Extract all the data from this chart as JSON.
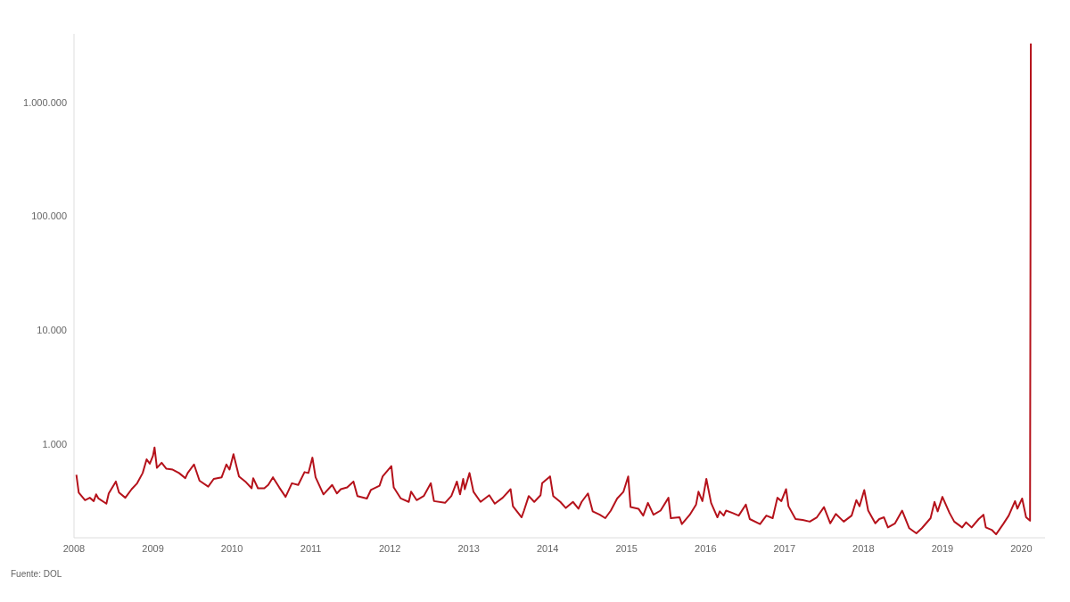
{
  "chart_data": {
    "type": "line",
    "x": [
      2008.03,
      2008.06,
      2008.14,
      2008.2,
      2008.25,
      2008.28,
      2008.31,
      2008.41,
      2008.44,
      2008.53,
      2008.57,
      2008.65,
      2008.73,
      2008.8,
      2008.87,
      2008.92,
      2008.96,
      2009.0,
      2009.02,
      2009.05,
      2009.11,
      2009.17,
      2009.25,
      2009.33,
      2009.41,
      2009.44,
      2009.52,
      2009.59,
      2009.7,
      2009.77,
      2009.87,
      2009.93,
      2009.97,
      2010.02,
      2010.09,
      2010.17,
      2010.25,
      2010.27,
      2010.33,
      2010.41,
      2010.46,
      2010.52,
      2010.6,
      2010.68,
      2010.76,
      2010.84,
      2010.92,
      2010.97,
      2011.02,
      2011.06,
      2011.16,
      2011.27,
      2011.33,
      2011.38,
      2011.46,
      2011.54,
      2011.59,
      2011.71,
      2011.76,
      2011.87,
      2011.91,
      2012.02,
      2012.05,
      2012.14,
      2012.24,
      2012.27,
      2012.34,
      2012.43,
      2012.52,
      2012.56,
      2012.7,
      2012.78,
      2012.85,
      2012.89,
      2012.93,
      2012.95,
      2013.01,
      2013.06,
      2013.15,
      2013.26,
      2013.33,
      2013.43,
      2013.53,
      2013.56,
      2013.67,
      2013.7,
      2013.76,
      2013.83,
      2013.91,
      2013.93,
      2014.03,
      2014.07,
      2014.16,
      2014.23,
      2014.32,
      2014.39,
      2014.43,
      2014.51,
      2014.57,
      2014.66,
      2014.73,
      2014.8,
      2014.88,
      2014.96,
      2015.02,
      2015.05,
      2015.15,
      2015.21,
      2015.27,
      2015.34,
      2015.43,
      2015.53,
      2015.56,
      2015.67,
      2015.7,
      2015.8,
      2015.88,
      2015.91,
      2015.96,
      2016.01,
      2016.07,
      2016.15,
      2016.18,
      2016.23,
      2016.26,
      2016.34,
      2016.42,
      2016.51,
      2016.56,
      2016.69,
      2016.77,
      2016.85,
      2016.91,
      2016.96,
      2017.02,
      2017.05,
      2017.14,
      2017.23,
      2017.32,
      2017.41,
      2017.5,
      2017.58,
      2017.65,
      2017.75,
      2017.85,
      2017.91,
      2017.95,
      2018.01,
      2018.06,
      2018.15,
      2018.2,
      2018.26,
      2018.31,
      2018.4,
      2018.49,
      2018.58,
      2018.67,
      2018.74,
      2018.85,
      2018.9,
      2018.94,
      2019.0,
      2019.09,
      2019.15,
      2019.25,
      2019.3,
      2019.37,
      2019.46,
      2019.52,
      2019.55,
      2019.63,
      2019.68,
      2019.77,
      2019.84,
      2019.92,
      2019.95,
      2020.01,
      2020.06,
      2020.11,
      2020.12
    ],
    "series": [
      {
        "color": "#b5121b",
        "values": [
          537,
          374,
          321,
          337,
          315,
          361,
          332,
          299,
          368,
          468,
          374,
          337,
          401,
          452,
          556,
          733,
          672,
          785,
          933,
          617,
          684,
          606,
          596,
          556,
          501,
          556,
          661,
          476,
          422,
          493,
          510,
          661,
          596,
          813,
          519,
          468,
          408,
          501,
          408,
          408,
          437,
          510,
          415,
          343,
          452,
          437,
          566,
          556,
          759,
          510,
          361,
          437,
          368,
          401,
          415,
          468,
          349,
          332,
          394,
          430,
          519,
          639,
          415,
          332,
          310,
          381,
          321,
          349,
          452,
          315,
          304,
          349,
          468,
          361,
          493,
          401,
          556,
          381,
          310,
          355,
          299,
          337,
          401,
          284,
          227,
          260,
          349,
          310,
          355,
          452,
          519,
          349,
          310,
          274,
          310,
          270,
          310,
          368,
          256,
          239,
          223,
          260,
          332,
          381,
          519,
          279,
          270,
          235,
          304,
          239,
          260,
          337,
          223,
          227,
          198,
          239,
          294,
          381,
          315,
          493,
          304,
          227,
          256,
          235,
          260,
          248,
          235,
          294,
          219,
          198,
          235,
          223,
          337,
          315,
          401,
          284,
          219,
          215,
          208,
          227,
          279,
          201,
          243,
          208,
          235,
          321,
          284,
          394,
          260,
          201,
          219,
          227,
          185,
          201,
          260,
          182,
          164,
          182,
          223,
          310,
          256,
          343,
          248,
          208,
          185,
          205,
          185,
          219,
          239,
          185,
          175,
          161,
          198,
          235,
          315,
          270,
          332,
          227,
          212,
          3300000
        ]
      }
    ],
    "log": "y",
    "marker": "none",
    "xlim": [
      2008,
      2020.3
    ],
    "xticks": [
      2008,
      2009,
      2010,
      2011,
      2012,
      2013,
      2014,
      2015,
      2016,
      2017,
      2018,
      2019,
      2020
    ],
    "ylim": [
      150,
      4000000
    ],
    "yticks": [
      {
        "value": 1000,
        "label": "1.000"
      },
      {
        "value": 10000,
        "label": "10.000"
      },
      {
        "value": 100000,
        "label": "100.000"
      },
      {
        "value": 1000000,
        "label": "1.000.000"
      }
    ],
    "annotations": [
      "Fuente: DOL"
    ]
  }
}
